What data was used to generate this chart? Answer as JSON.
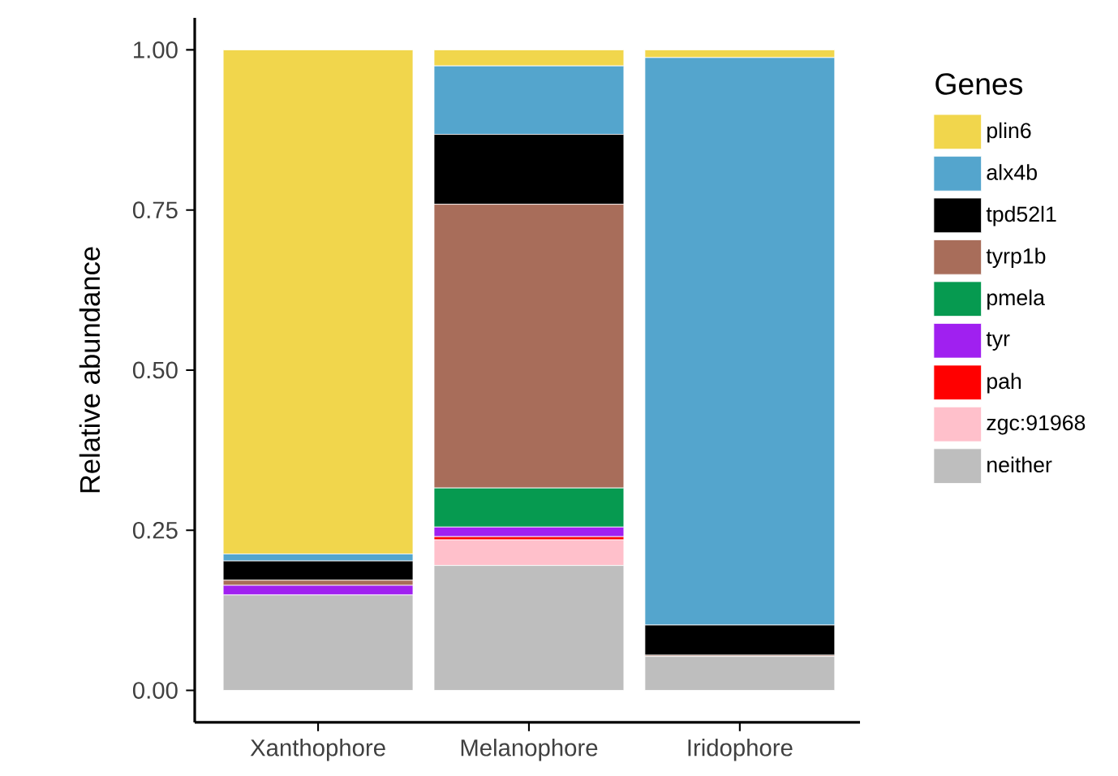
{
  "chart_data": {
    "type": "bar",
    "stacked": true,
    "ylabel": "Relative abundance",
    "legend_title": "Genes",
    "legend": "right",
    "categories": [
      "Xanthophore",
      "Melanophore",
      "Iridophore"
    ],
    "ylim": [
      -0.05,
      1.05
    ],
    "yticks": [
      {
        "value": 0,
        "label": "0.00"
      },
      {
        "value": 0.25,
        "label": "0.25"
      },
      {
        "value": 0.5,
        "label": "0.50"
      },
      {
        "value": 0.75,
        "label": "0.75"
      },
      {
        "value": 1,
        "label": "1.00"
      }
    ],
    "series": [
      {
        "name": "neither",
        "color": "#bebebe",
        "values": [
          0.149,
          0.195,
          0.053
        ]
      },
      {
        "name": "zgc:91968",
        "color": "#ffc0cb",
        "values": [
          0,
          0.04,
          0
        ]
      },
      {
        "name": "pah",
        "color": "#ff0000",
        "values": [
          0,
          0.005,
          0
        ]
      },
      {
        "name": "tyr",
        "color": "#a020f0",
        "values": [
          0.015,
          0.015,
          0
        ]
      },
      {
        "name": "pmela",
        "color": "#069a50",
        "values": [
          0,
          0.061,
          0
        ]
      },
      {
        "name": "tyrp1b",
        "color": "#a86d5a",
        "values": [
          0.008,
          0.443,
          0.002
        ]
      },
      {
        "name": "tpd52l1",
        "color": "#000000",
        "values": [
          0.03,
          0.109,
          0.047
        ]
      },
      {
        "name": "alx4b",
        "color": "#54a5cd",
        "values": [
          0.011,
          0.107,
          0.886
        ]
      },
      {
        "name": "plin6",
        "color": "#f1d64c",
        "values": [
          0.787,
          0.025,
          0.012
        ]
      }
    ]
  }
}
